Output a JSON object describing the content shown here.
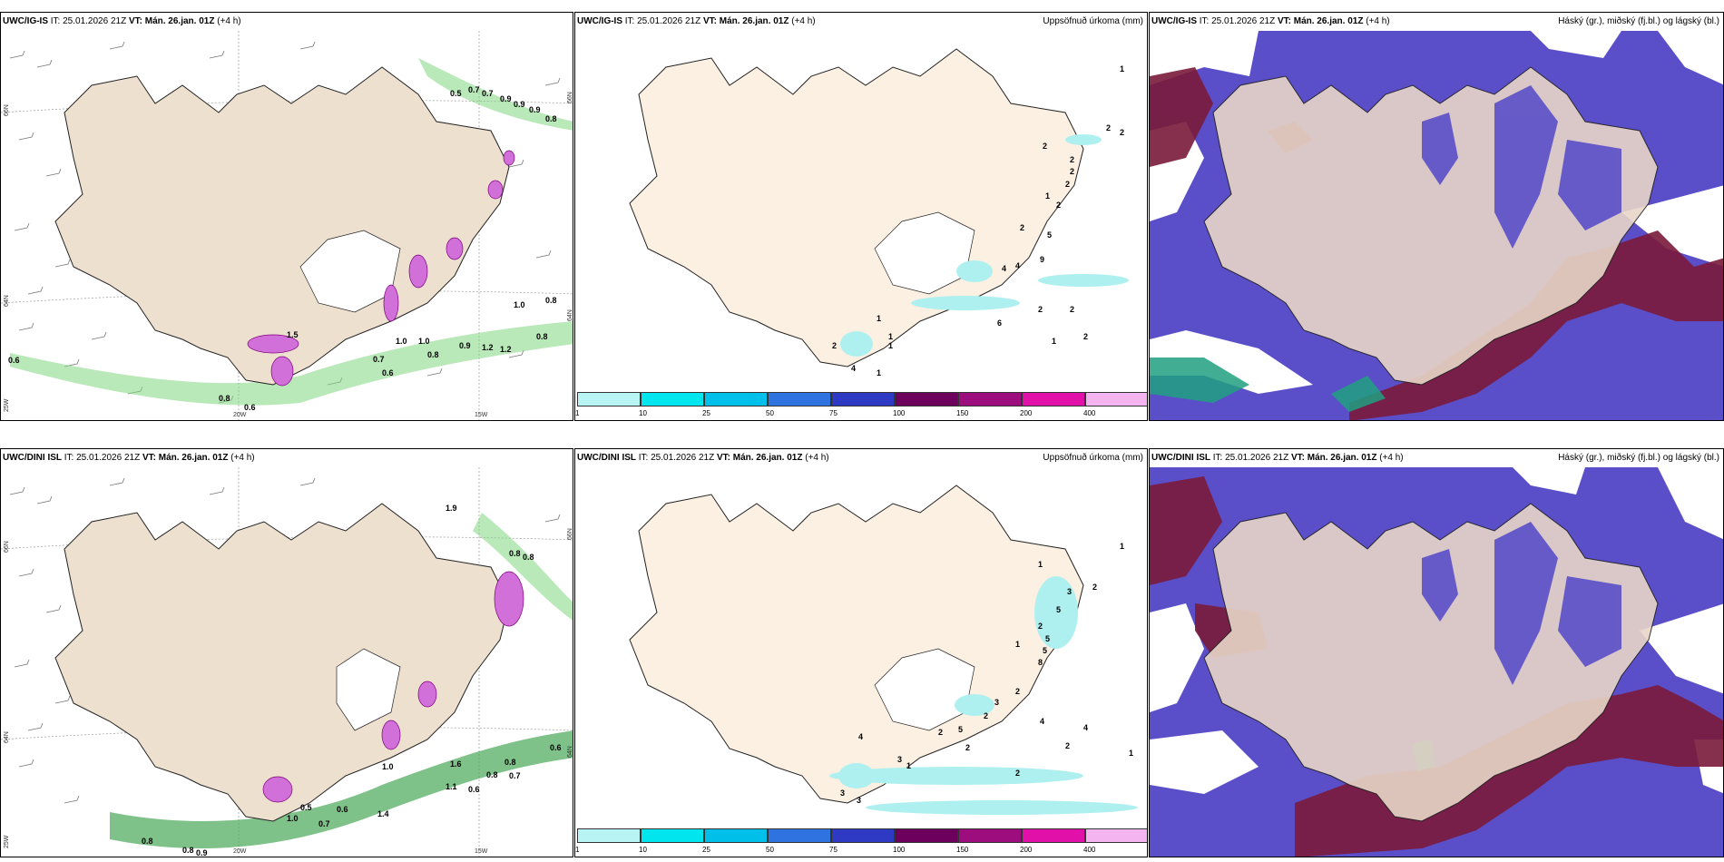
{
  "rows": [
    {
      "model": "UWC/IG-IS",
      "it_label": "IT:",
      "it_value": "25.01.2026 21Z",
      "vt_label": "VT:",
      "vt_value": "Mán. 26.jan. 01Z",
      "lead": "(+4 h)"
    },
    {
      "model": "UWC/DINI ISL",
      "it_label": "IT:",
      "it_value": "25.01.2026 21Z",
      "vt_label": "VT:",
      "vt_value": "Mán. 26.jan. 01Z",
      "lead": "(+4 h)"
    }
  ],
  "precip_title": "Uppsöfnuð úrkoma (mm)",
  "cloud_title": "Háský (gr.), miðský (fj.bl.) og lágský (bl.)",
  "axis": {
    "lat_66": "66N",
    "lat_64": "64N",
    "lat_bottom": "25W",
    "lon_20": "20W",
    "lon_15": "15W",
    "right_66": "66N",
    "right_64": "64N"
  },
  "legend": {
    "ticks": [
      "1",
      "10",
      "25",
      "50",
      "75",
      "100",
      "150",
      "200",
      "400"
    ],
    "colors": [
      "#b8f4f4",
      "#00e5ee",
      "#00bfe8",
      "#2f73e0",
      "#2e39c4",
      "#6c005c",
      "#9e0d7e",
      "#e010a8",
      "#f4b4f0"
    ]
  },
  "labels": {
    "ig_wind": [
      "0.5",
      "0.7",
      "0.7",
      "0.9",
      "0.9",
      "0.9",
      "0.8",
      "1.0",
      "0.8",
      "0.8",
      "0.6",
      "0.8",
      "0.6",
      "0.9",
      "1.2",
      "1.2",
      "0.7",
      "0.6",
      "0.8",
      "1.0",
      "1.0",
      "1.5"
    ],
    "ig_precip": [
      "1",
      "2",
      "2",
      "2",
      "2",
      "2",
      "2",
      "1",
      "2",
      "2",
      "5",
      "9",
      "4",
      "4",
      "1",
      "1",
      "1",
      "2",
      "6",
      "2",
      "2",
      "1",
      "2",
      "4",
      "1"
    ],
    "dini_wind": [
      "1.9",
      "0.8",
      "0.8",
      "0.6",
      "0.8",
      "0.7",
      "0.8",
      "1.0",
      "0.6",
      "0.7",
      "0.8",
      "0.9",
      "0.5",
      "1.6",
      "1.0",
      "0.6",
      "1.4",
      "1.1",
      "0.8"
    ],
    "dini_precip": [
      "1",
      "1",
      "2",
      "3",
      "5",
      "2",
      "5",
      "5",
      "8",
      "1",
      "2",
      "3",
      "2",
      "5",
      "4",
      "4",
      "2",
      "1",
      "2",
      "2",
      "3",
      "4",
      "3",
      "3",
      "2",
      "1"
    ]
  },
  "colors": {
    "land": "#ede0cf",
    "coast": "#222222",
    "hatch": "#555555",
    "precip_pink": "#d070d8",
    "wind_green": "#5cc45c",
    "cloud_blue": "#5a4fc8",
    "cloud_maroon": "#7a1a3a",
    "precip_cyan": "#aef0f0"
  }
}
